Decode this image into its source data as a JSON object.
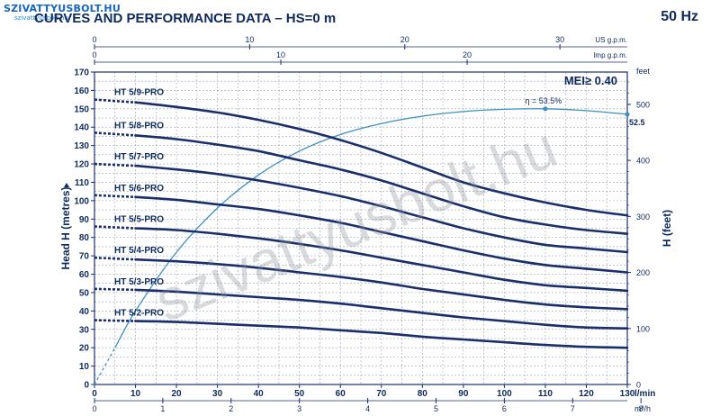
{
  "header": {
    "logo_text": "SZIVATTYUSBOLT.HU",
    "logo_sub": "szivattyusbolt.hu",
    "title": "CURVES AND PERFORMANCE DATA  –  HS=0 m",
    "frequency": "50 Hz",
    "mei": "MEI≥ 0.40",
    "watermark": "szivattyusbolt.hu"
  },
  "colors": {
    "curve": "#1a2e6b",
    "efficiency": "#3d8fc0",
    "grid": "#9aa3b5",
    "text": "#0e2a5c"
  },
  "chart_data": {
    "type": "line",
    "xlabel": "l/min",
    "ylabel": "Head H (metres)",
    "y2label": "H (feet)",
    "y2unit": "feet",
    "xlim": [
      0,
      130
    ],
    "ylim": [
      0,
      170
    ],
    "y2lim": [
      0,
      557.7
    ],
    "x_ticks": [
      "0",
      "10",
      "20",
      "30",
      "40",
      "50",
      "60",
      "70",
      "80",
      "90",
      "100",
      "110",
      "120",
      "130"
    ],
    "y_ticks": [
      "0",
      "10",
      "20",
      "30",
      "40",
      "50",
      "60",
      "70",
      "80",
      "90",
      "100",
      "110",
      "120",
      "130",
      "140",
      "150",
      "160",
      "170"
    ],
    "y2_ticks": [
      "0",
      "100",
      "200",
      "300",
      "400",
      "500"
    ],
    "top_axis_usgpm": {
      "unit": "US g.p.m.",
      "ticks": [
        "0",
        "10",
        "20",
        "30"
      ],
      "values": [
        0,
        10,
        20,
        30
      ]
    },
    "top_axis_impgpm": {
      "unit": "Imp g.p.m.",
      "ticks": [
        "0",
        "10",
        "20"
      ],
      "values": [
        0,
        10,
        20
      ]
    },
    "bottom_axis_m3h": {
      "unit": "m³/h",
      "ticks": [
        "0",
        "1",
        "2",
        "3",
        "4",
        "5",
        "6",
        "7",
        "8"
      ],
      "values": [
        0,
        1,
        2,
        3,
        4,
        5,
        6,
        7,
        8
      ]
    },
    "x": [
      0,
      10,
      20,
      30,
      40,
      50,
      60,
      70,
      80,
      90,
      100,
      110,
      120,
      130
    ],
    "series": [
      {
        "name": "HT 5/9-PRO",
        "values": [
          155,
          153.5,
          151,
          148,
          144,
          139,
          133,
          126,
          118,
          110,
          104,
          99,
          95,
          92
        ]
      },
      {
        "name": "HT 5/8-PRO",
        "values": [
          137,
          135.5,
          133.5,
          130.5,
          127,
          122,
          117,
          111,
          104,
          97,
          91,
          87,
          84,
          82
        ]
      },
      {
        "name": "HT 5/7-PRO",
        "values": [
          120,
          119,
          117,
          114.5,
          111,
          107,
          102.5,
          97,
          91,
          85,
          80,
          76,
          74,
          72
        ]
      },
      {
        "name": "HT 5/6-PRO",
        "values": [
          103,
          102,
          100.5,
          98,
          95.5,
          92,
          88,
          83,
          78,
          73,
          68.5,
          65,
          63,
          61
        ]
      },
      {
        "name": "HT 5/5-PRO",
        "values": [
          86,
          85,
          84,
          82,
          79.5,
          76.5,
          73,
          69,
          65,
          61,
          57,
          54,
          52.5,
          51
        ]
      },
      {
        "name": "HT 5/4-PRO",
        "values": [
          69,
          68,
          67,
          65.5,
          63.5,
          61,
          58.5,
          55.5,
          52,
          49,
          46,
          43.5,
          42,
          41
        ]
      },
      {
        "name": "HT 5/3-PRO",
        "values": [
          52,
          51.5,
          50.5,
          49,
          47.5,
          46,
          44,
          41.5,
          39,
          36.5,
          34.5,
          32.5,
          31,
          30.5
        ]
      },
      {
        "name": "HT 5/2-PRO",
        "values": [
          35,
          34.5,
          34,
          33,
          32,
          31,
          29.5,
          28,
          26,
          24.5,
          23,
          21.5,
          20.5,
          20
        ]
      }
    ],
    "efficiency": {
      "label": "η = 53.5%",
      "end_label": "52.5",
      "x": [
        0,
        5,
        10,
        20,
        30,
        40,
        50,
        60,
        70,
        80,
        90,
        100,
        110,
        120,
        130
      ],
      "values": [
        0,
        20,
        40,
        72,
        96,
        114,
        127,
        136,
        142,
        146,
        148.5,
        149.7,
        150,
        149,
        147
      ]
    },
    "grid": true
  }
}
